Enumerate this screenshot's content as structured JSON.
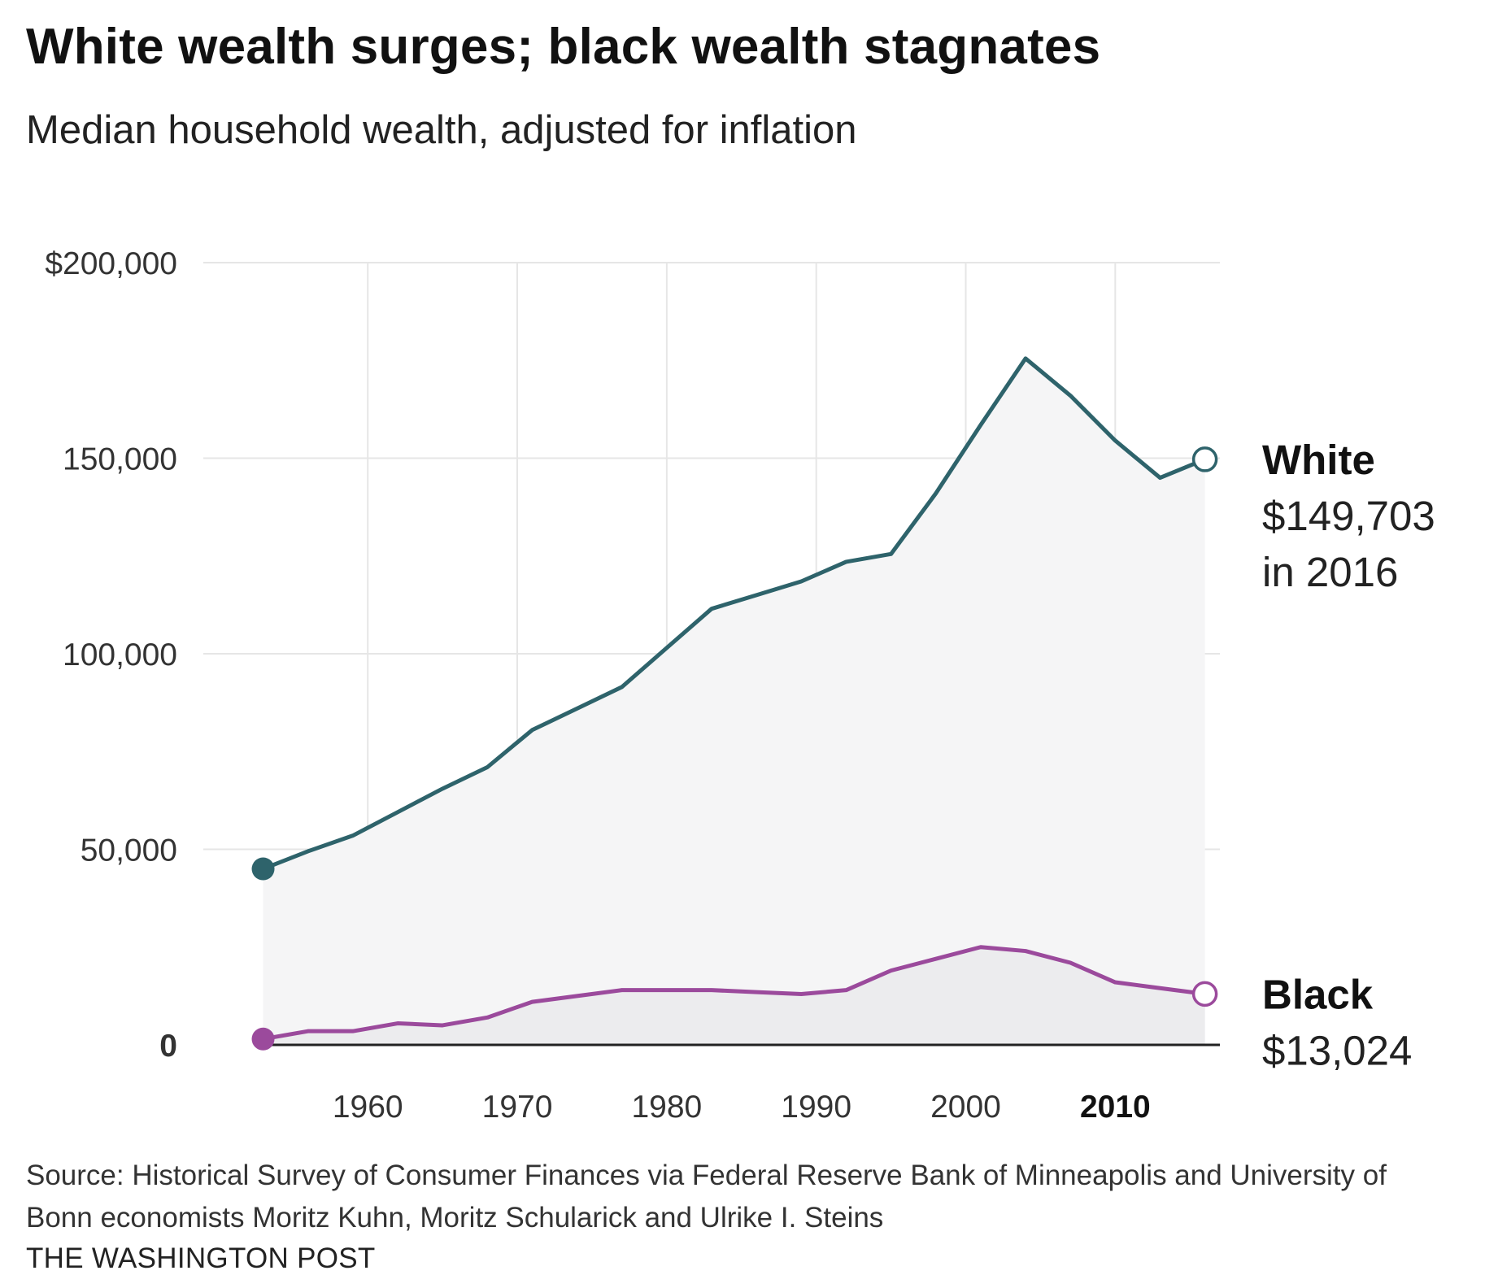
{
  "header": {
    "title": "White wealth surges; black wealth stagnates",
    "subtitle": "Median household wealth, adjusted for inflation"
  },
  "footer": {
    "source": "Source: Historical Survey of Consumer Finances via Federal Reserve Bank of Minneapolis and University of Bonn economists Moritz Kuhn, Moritz Schularick and Ulrike I. Steins",
    "credit": "THE WASHINGTON POST"
  },
  "colors": {
    "white_series": "#2e636b",
    "black_series": "#9b4a9c",
    "area_white": "#f5f5f6",
    "area_black": "#ececee",
    "grid": "#e6e6e6",
    "baseline": "#222222"
  },
  "chart_data": {
    "type": "area",
    "title": "White wealth surges; black wealth stagnates",
    "subtitle": "Median household wealth, adjusted for inflation",
    "xlabel": "",
    "ylabel": "",
    "xlim": [
      1949,
      2017
    ],
    "ylim": [
      0,
      200000
    ],
    "grid": true,
    "y_ticks": [
      {
        "value": 200000,
        "label": "$200,000",
        "bold": false
      },
      {
        "value": 150000,
        "label": "150,000",
        "bold": false
      },
      {
        "value": 100000,
        "label": "100,000",
        "bold": false
      },
      {
        "value": 50000,
        "label": "50,000",
        "bold": false
      },
      {
        "value": 0,
        "label": "0",
        "bold": true
      }
    ],
    "x_ticks": [
      {
        "value": 1960,
        "label": "1960",
        "bold": false
      },
      {
        "value": 1970,
        "label": "1970",
        "bold": false
      },
      {
        "value": 1980,
        "label": "1980",
        "bold": false
      },
      {
        "value": 1990,
        "label": "1990",
        "bold": false
      },
      {
        "value": 2000,
        "label": "2000",
        "bold": false
      },
      {
        "value": 2010,
        "label": "2010",
        "bold": true
      }
    ],
    "series": [
      {
        "name": "White",
        "color": "#2e636b",
        "x": [
          1953,
          1956,
          1959,
          1962,
          1965,
          1968,
          1971,
          1974,
          1977,
          1980,
          1983,
          1986,
          1989,
          1992,
          1995,
          1998,
          2001,
          2004,
          2007,
          2010,
          2013,
          2016
        ],
        "values": [
          45000,
          49500,
          53500,
          59500,
          65500,
          71000,
          80500,
          86000,
          91500,
          101500,
          111500,
          115000,
          118500,
          123500,
          125500,
          141000,
          158500,
          175500,
          166000,
          154500,
          145000,
          149703
        ],
        "end_label": {
          "name": "White",
          "value": "$149,703",
          "note": "in 2016"
        }
      },
      {
        "name": "Black",
        "color": "#9b4a9c",
        "x": [
          1953,
          1956,
          1959,
          1962,
          1965,
          1968,
          1971,
          1974,
          1977,
          1980,
          1983,
          1986,
          1989,
          1992,
          1995,
          1998,
          2001,
          2004,
          2007,
          2010,
          2013,
          2016
        ],
        "values": [
          1500,
          3500,
          3500,
          5500,
          5000,
          7000,
          11000,
          12500,
          14000,
          14000,
          14000,
          13500,
          13000,
          14000,
          19000,
          22000,
          25000,
          24000,
          21000,
          16000,
          14500,
          13024
        ],
        "end_label": {
          "name": "Black",
          "value": "$13,024"
        }
      }
    ]
  }
}
